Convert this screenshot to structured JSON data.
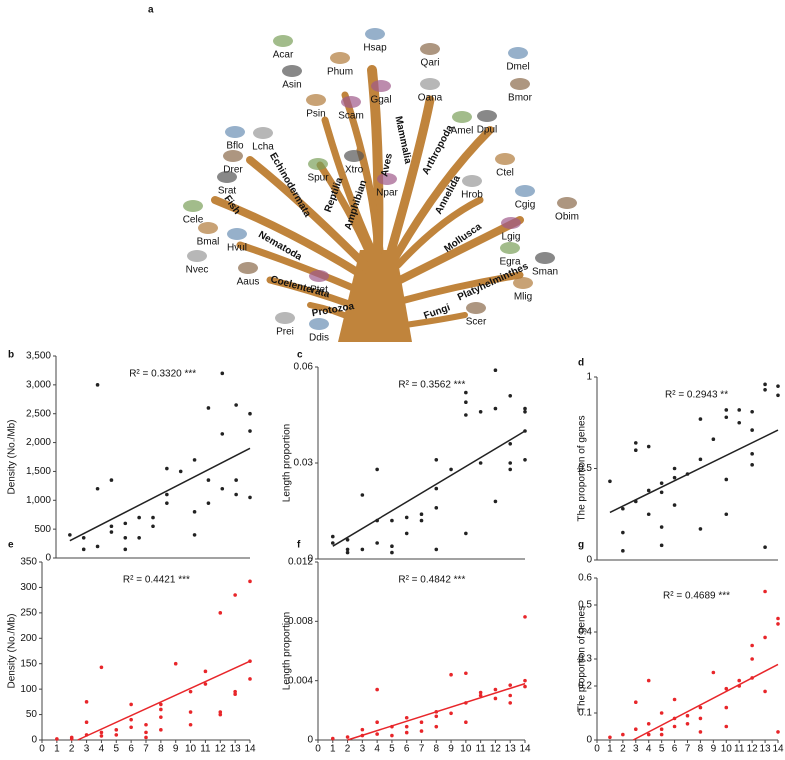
{
  "tree": {
    "panel": "a",
    "species": [
      "Hsap",
      "Qari",
      "Acar",
      "Asin",
      "Phum",
      "Ggal",
      "Oana",
      "Dmel",
      "Bmor",
      "Amel",
      "Dpul",
      "Psin",
      "Scam",
      "Lcha",
      "Bflo",
      "Drer",
      "Spur",
      "Xtro",
      "Ctel",
      "Npar",
      "Hrob",
      "Cgig",
      "Obim",
      "Cele",
      "Srat",
      "Bmal",
      "Lgig",
      "Nvec",
      "Hvul",
      "Aaus",
      "Egra",
      "Sman",
      "Mlig",
      "Ptet",
      "Prei",
      "Ddis",
      "Scer"
    ],
    "clades": [
      "Mammalia",
      "Aves",
      "Amphibian",
      "Reptilia",
      "Echinodermata",
      "Fish",
      "Nematoda",
      "Coelenterata",
      "Protozoa",
      "Fungi",
      "Platyhelminthes",
      "Mollusca",
      "Annelida",
      "Arthropoda"
    ]
  },
  "chart_data": [
    {
      "type": "scatter",
      "panel": "b",
      "annotation": "R² = 0.3320 ***",
      "ylabel": "Density (No./Mb)",
      "color": "#222222",
      "x": [
        1,
        2,
        2,
        3,
        3,
        3,
        4,
        4,
        4,
        5,
        5,
        5,
        6,
        6,
        7,
        7,
        8,
        8,
        8,
        9,
        10,
        10,
        10,
        11,
        11,
        11,
        12,
        12,
        12,
        13,
        13,
        13,
        14,
        14,
        14
      ],
      "values": [
        400,
        350,
        150,
        3000,
        1200,
        200,
        1350,
        550,
        450,
        350,
        150,
        600,
        700,
        350,
        700,
        550,
        1550,
        1100,
        950,
        1500,
        1700,
        800,
        400,
        2600,
        1350,
        950,
        3200,
        2150,
        1200,
        2650,
        1100,
        1350,
        2500,
        2200,
        1050
      ],
      "fit_line": {
        "x": [
          1,
          14
        ],
        "y": [
          300,
          1900
        ]
      },
      "xlim": [
        0,
        14
      ],
      "ylim": [
        0,
        3500
      ],
      "yticks": [
        0,
        500,
        {
          "value": 1000,
          "label": "1,000"
        },
        {
          "value": 1500,
          "label": "1,500"
        },
        {
          "value": 2000,
          "label": "2,000"
        },
        {
          "value": 2500,
          "label": "2,500"
        },
        {
          "value": 3000,
          "label": "3,000"
        },
        {
          "value": 3500,
          "label": "3,500"
        }
      ]
    },
    {
      "type": "scatter",
      "panel": "c",
      "annotation": "R² = 0.3562 ***",
      "ylabel": "Length proportion",
      "color": "#222222",
      "x": [
        1,
        1,
        2,
        2,
        2,
        3,
        3,
        4,
        4,
        4,
        5,
        5,
        5,
        6,
        6,
        7,
        7,
        8,
        8,
        8,
        8,
        9,
        10,
        10,
        10,
        10,
        11,
        11,
        12,
        12,
        12,
        13,
        13,
        13,
        13,
        14,
        14,
        14,
        14
      ],
      "values": [
        0.007,
        0.005,
        0.006,
        0.003,
        0.002,
        0.02,
        0.003,
        0.028,
        0.012,
        0.005,
        0.012,
        0.004,
        0.002,
        0.013,
        0.008,
        0.012,
        0.014,
        0.031,
        0.022,
        0.016,
        0.003,
        0.028,
        0.052,
        0.049,
        0.045,
        0.008,
        0.046,
        0.03,
        0.059,
        0.047,
        0.018,
        0.051,
        0.036,
        0.03,
        0.028,
        0.047,
        0.046,
        0.04,
        0.031
      ],
      "fit_line": {
        "x": [
          1,
          14
        ],
        "y": [
          0.004,
          0.04
        ]
      },
      "xlim": [
        0,
        14
      ],
      "ylim": [
        0,
        0.06
      ],
      "yticks": [
        0,
        0.03,
        0.06
      ]
    },
    {
      "type": "scatter",
      "panel": "d",
      "annotation": "R² = 0.2943 **",
      "ylabel": "The proportion of genes",
      "color": "#222222",
      "x": [
        1,
        2,
        2,
        2,
        3,
        3,
        3,
        4,
        4,
        4,
        5,
        5,
        5,
        5,
        6,
        6,
        6,
        7,
        8,
        8,
        8,
        9,
        10,
        10,
        10,
        10,
        11,
        11,
        12,
        12,
        12,
        12,
        13,
        13,
        13,
        14,
        14
      ],
      "values": [
        0.43,
        0.28,
        0.15,
        0.05,
        0.64,
        0.6,
        0.32,
        0.62,
        0.38,
        0.25,
        0.42,
        0.37,
        0.18,
        0.08,
        0.5,
        0.45,
        0.3,
        0.47,
        0.77,
        0.55,
        0.17,
        0.66,
        0.82,
        0.78,
        0.44,
        0.25,
        0.82,
        0.75,
        0.81,
        0.71,
        0.58,
        0.52,
        0.96,
        0.93,
        0.07,
        0.95,
        0.9
      ],
      "fit_line": {
        "x": [
          1,
          14
        ],
        "y": [
          0.26,
          0.71
        ]
      },
      "xlim": [
        0,
        14
      ],
      "ylim": [
        0,
        1
      ],
      "yticks": [
        0,
        0.5,
        1
      ]
    },
    {
      "type": "scatter",
      "panel": "e",
      "annotation": "R² = 0.4421 ***",
      "ylabel": "Density (No./Mb)",
      "color": "#e8262a",
      "x": [
        1,
        2,
        2,
        3,
        3,
        3,
        4,
        4,
        4,
        5,
        5,
        6,
        6,
        6,
        7,
        7,
        7,
        8,
        8,
        8,
        8,
        9,
        10,
        10,
        10,
        11,
        11,
        12,
        12,
        12,
        13,
        13,
        13,
        14,
        14,
        14
      ],
      "values": [
        2,
        5,
        2,
        75,
        35,
        10,
        143,
        15,
        8,
        20,
        10,
        70,
        40,
        25,
        30,
        15,
        5,
        70,
        60,
        45,
        20,
        150,
        95,
        55,
        30,
        135,
        110,
        250,
        55,
        50,
        285,
        95,
        90,
        312,
        155,
        120
      ],
      "fit_line": {
        "x": [
          2.4,
          14
        ],
        "y": [
          0,
          155
        ]
      },
      "xlim": [
        0,
        14
      ],
      "ylim": [
        0,
        350
      ],
      "yticks": [
        0,
        50,
        100,
        150,
        200,
        250,
        300,
        350
      ],
      "xticks": [
        0,
        1,
        2,
        3,
        4,
        5,
        6,
        7,
        8,
        9,
        10,
        11,
        12,
        13,
        14
      ]
    },
    {
      "type": "scatter",
      "panel": "f",
      "annotation": "R² = 0.4842 ***",
      "ylabel": "Length proportion",
      "color": "#e8262a",
      "x": [
        1,
        2,
        3,
        3,
        4,
        4,
        4,
        5,
        5,
        6,
        6,
        6,
        7,
        7,
        8,
        8,
        8,
        9,
        9,
        10,
        10,
        10,
        11,
        11,
        12,
        12,
        13,
        13,
        13,
        14,
        14,
        14
      ],
      "values": [
        0.0001,
        0.0002,
        0.0007,
        0.0003,
        0.0034,
        0.0012,
        0.0004,
        0.0009,
        0.0003,
        0.0015,
        0.0009,
        0.0005,
        0.0012,
        0.0006,
        0.0019,
        0.0016,
        0.0009,
        0.0044,
        0.0018,
        0.0045,
        0.0025,
        0.0012,
        0.0032,
        0.003,
        0.0034,
        0.0028,
        0.0037,
        0.003,
        0.0025,
        0.0083,
        0.004,
        0.0036
      ],
      "fit_line": {
        "x": [
          2,
          14
        ],
        "y": [
          0,
          0.0038
        ]
      },
      "xlim": [
        0,
        14
      ],
      "ylim": [
        0,
        0.012
      ],
      "yticks": [
        0,
        0.004,
        0.008,
        0.012
      ],
      "xticks": [
        0,
        1,
        2,
        3,
        4,
        5,
        6,
        7,
        8,
        9,
        10,
        11,
        12,
        13,
        14
      ]
    },
    {
      "type": "scatter",
      "panel": "g",
      "annotation": "R² = 0.4689 ***",
      "ylabel": "The proportion of genes",
      "color": "#e8262a",
      "x": [
        1,
        2,
        3,
        3,
        4,
        4,
        4,
        5,
        5,
        5,
        6,
        6,
        6,
        7,
        7,
        8,
        8,
        8,
        9,
        10,
        10,
        10,
        11,
        11,
        12,
        12,
        12,
        13,
        13,
        13,
        14,
        14,
        14
      ],
      "values": [
        0.01,
        0.02,
        0.14,
        0.04,
        0.22,
        0.06,
        0.02,
        0.1,
        0.04,
        0.02,
        0.15,
        0.08,
        0.05,
        0.09,
        0.06,
        0.12,
        0.08,
        0.03,
        0.25,
        0.19,
        0.12,
        0.05,
        0.22,
        0.2,
        0.35,
        0.3,
        0.23,
        0.55,
        0.38,
        0.18,
        0.45,
        0.43,
        0.03
      ],
      "fit_line": {
        "x": [
          2.8,
          14
        ],
        "y": [
          0,
          0.28
        ]
      },
      "xlim": [
        0,
        14
      ],
      "ylim": [
        0,
        0.6
      ],
      "yticks": [
        0,
        0.1,
        0.2,
        0.3,
        0.4,
        0.5,
        0.6
      ],
      "xticks": [
        0,
        1,
        2,
        3,
        4,
        5,
        6,
        7,
        8,
        9,
        10,
        11,
        12,
        13,
        14
      ]
    }
  ]
}
